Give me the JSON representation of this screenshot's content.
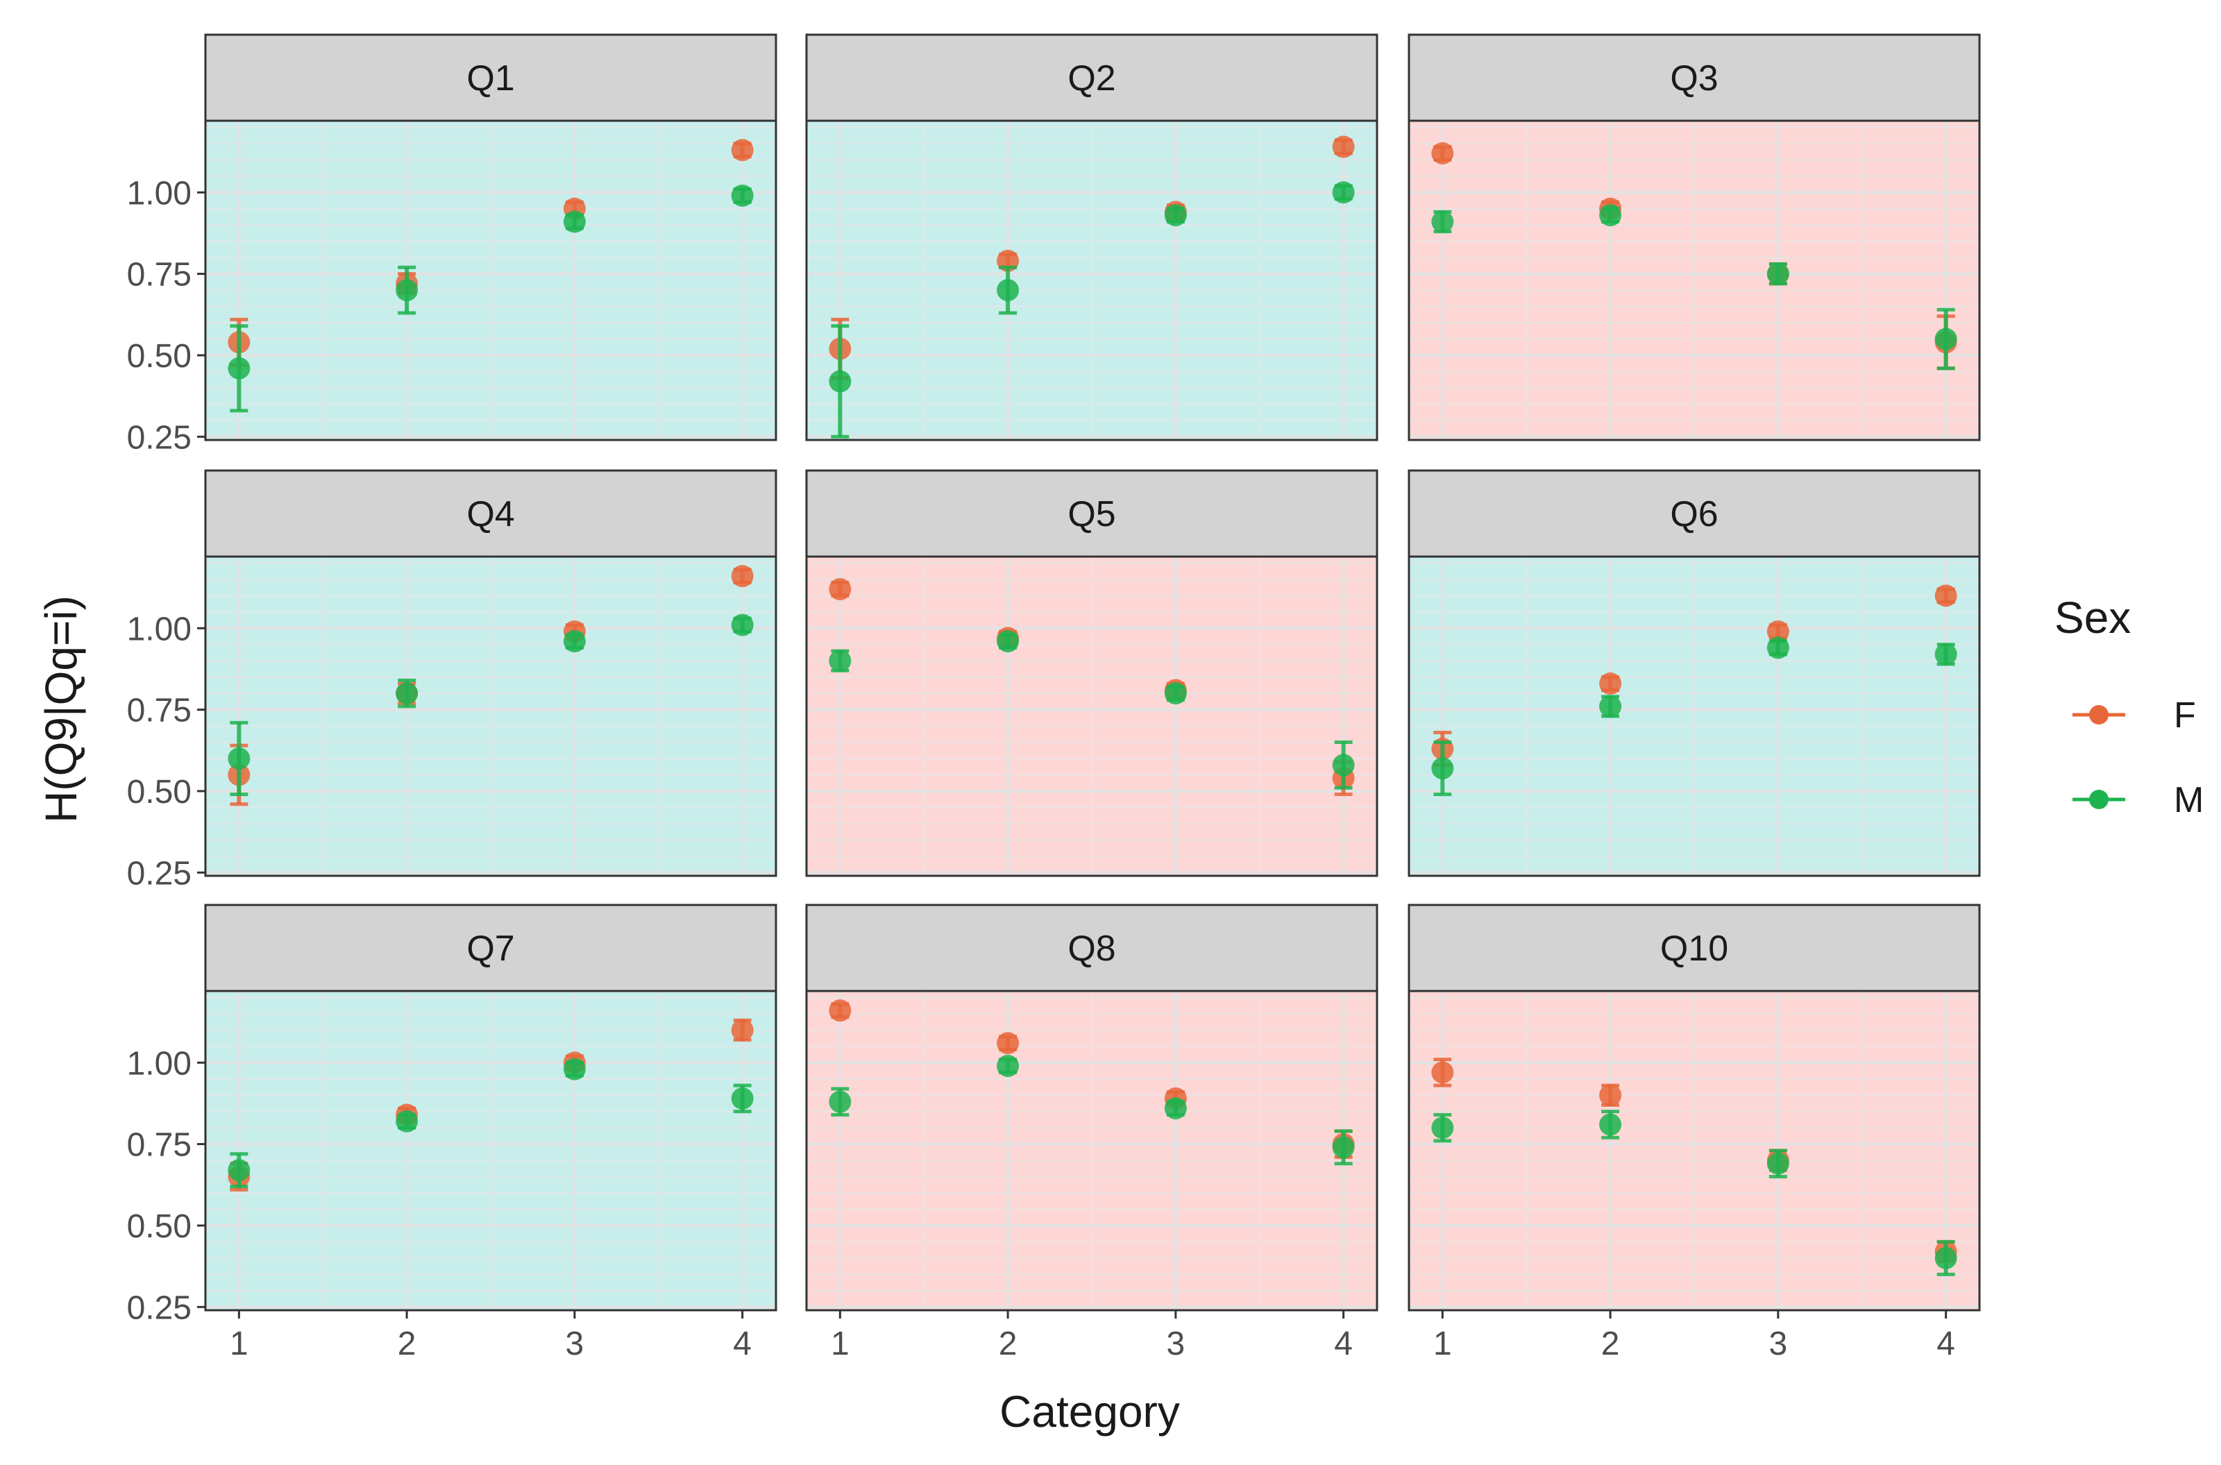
{
  "chart_data": {
    "type": "scatter",
    "layout": "facet-grid-3x3",
    "xlabel": "Category",
    "ylabel": "H(Q9|Qq=i)",
    "x_ticks": [
      "1",
      "2",
      "3",
      "4"
    ],
    "y_ticks": [
      "0.25",
      "0.50",
      "0.75",
      "1.00"
    ],
    "ylim": [
      0.24,
      1.22
    ],
    "xlim": [
      0.8,
      4.2
    ],
    "legend": {
      "title": "Sex",
      "position": "right",
      "entries": [
        {
          "name": "F",
          "color": "#E8673A"
        },
        {
          "name": "M",
          "color": "#1DB34F"
        }
      ]
    },
    "panel_colors": {
      "increasing": "#C8EEEC",
      "decreasing": "#FDD7D6"
    },
    "strip_color": "#D3D3D3",
    "grid_color": "#E6E6E6",
    "panels": [
      {
        "title": "Q1",
        "trend": "increasing",
        "series": [
          {
            "name": "F",
            "values": [
              0.54,
              0.72,
              0.95,
              1.13
            ],
            "errors": [
              0.07,
              0.03,
              0.02,
              0.02
            ]
          },
          {
            "name": "M",
            "values": [
              0.46,
              0.7,
              0.91,
              0.99
            ],
            "errors": [
              0.13,
              0.07,
              0.02,
              0.02
            ]
          }
        ]
      },
      {
        "title": "Q2",
        "trend": "increasing",
        "series": [
          {
            "name": "F",
            "values": [
              0.52,
              0.79,
              0.94,
              1.14
            ],
            "errors": [
              0.09,
              0.02,
              0.02,
              0.02
            ]
          },
          {
            "name": "M",
            "values": [
              0.42,
              0.7,
              0.93,
              1.0
            ],
            "errors": [
              0.17,
              0.07,
              0.02,
              0.02
            ]
          }
        ]
      },
      {
        "title": "Q3",
        "trend": "decreasing",
        "series": [
          {
            "name": "F",
            "values": [
              1.12,
              0.95,
              0.75,
              0.54
            ],
            "errors": [
              0.02,
              0.02,
              0.03,
              0.08
            ]
          },
          {
            "name": "M",
            "values": [
              0.91,
              0.93,
              0.75,
              0.55
            ],
            "errors": [
              0.03,
              0.02,
              0.03,
              0.09
            ]
          }
        ]
      },
      {
        "title": "Q4",
        "trend": "increasing",
        "series": [
          {
            "name": "F",
            "values": [
              0.55,
              0.8,
              0.99,
              1.16
            ],
            "errors": [
              0.09,
              0.03,
              0.02,
              0.02
            ]
          },
          {
            "name": "M",
            "values": [
              0.6,
              0.8,
              0.96,
              1.01
            ],
            "errors": [
              0.11,
              0.04,
              0.02,
              0.02
            ]
          }
        ]
      },
      {
        "title": "Q5",
        "trend": "decreasing",
        "series": [
          {
            "name": "F",
            "values": [
              1.12,
              0.97,
              0.81,
              0.54
            ],
            "errors": [
              0.02,
              0.02,
              0.02,
              0.05
            ]
          },
          {
            "name": "M",
            "values": [
              0.9,
              0.96,
              0.8,
              0.58
            ],
            "errors": [
              0.03,
              0.02,
              0.02,
              0.07
            ]
          }
        ]
      },
      {
        "title": "Q6",
        "trend": "increasing",
        "series": [
          {
            "name": "F",
            "values": [
              0.63,
              0.83,
              0.99,
              1.1
            ],
            "errors": [
              0.05,
              0.02,
              0.02,
              0.02
            ]
          },
          {
            "name": "M",
            "values": [
              0.57,
              0.76,
              0.94,
              0.92
            ],
            "errors": [
              0.08,
              0.03,
              0.02,
              0.03
            ]
          }
        ]
      },
      {
        "title": "Q7",
        "trend": "increasing",
        "series": [
          {
            "name": "F",
            "values": [
              0.65,
              0.84,
              1.0,
              1.1
            ],
            "errors": [
              0.04,
              0.02,
              0.02,
              0.03
            ]
          },
          {
            "name": "M",
            "values": [
              0.67,
              0.82,
              0.98,
              0.89
            ],
            "errors": [
              0.05,
              0.02,
              0.02,
              0.04
            ]
          }
        ]
      },
      {
        "title": "Q8",
        "trend": "decreasing",
        "series": [
          {
            "name": "F",
            "values": [
              1.16,
              1.06,
              0.89,
              0.75
            ],
            "errors": [
              0.02,
              0.02,
              0.02,
              0.04
            ]
          },
          {
            "name": "M",
            "values": [
              0.88,
              0.99,
              0.86,
              0.74
            ],
            "errors": [
              0.04,
              0.02,
              0.02,
              0.05
            ]
          }
        ]
      },
      {
        "title": "Q10",
        "trend": "decreasing",
        "series": [
          {
            "name": "F",
            "values": [
              0.97,
              0.9,
              0.7,
              0.42
            ],
            "errors": [
              0.04,
              0.03,
              0.03,
              0.03
            ]
          },
          {
            "name": "M",
            "values": [
              0.8,
              0.81,
              0.69,
              0.4
            ],
            "errors": [
              0.04,
              0.04,
              0.04,
              0.05
            ]
          }
        ]
      }
    ]
  }
}
